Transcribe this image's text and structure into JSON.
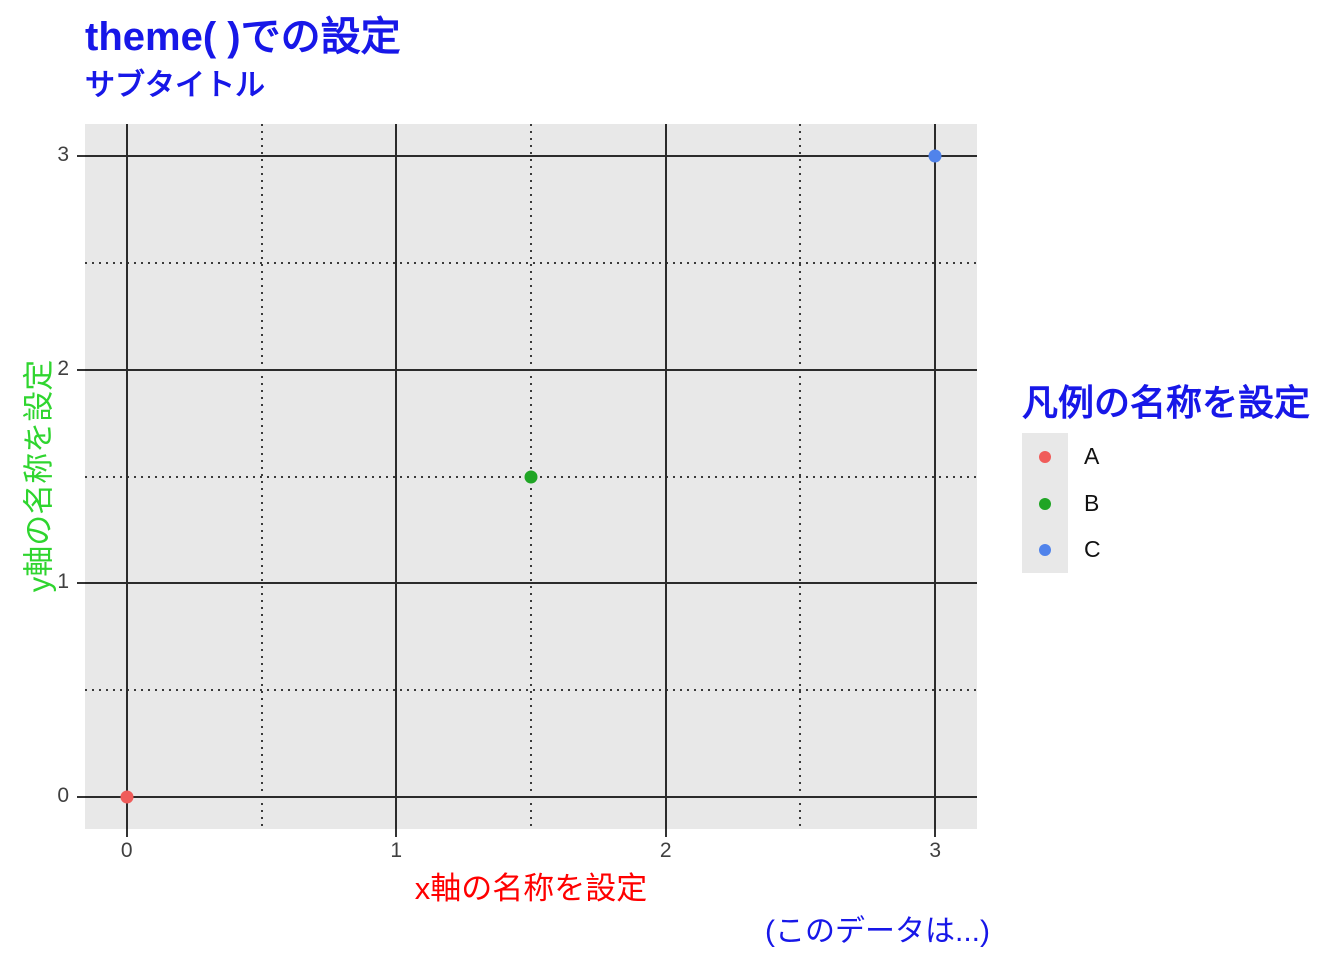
{
  "title": {
    "text": "theme( )での設定",
    "color": "#1717e8"
  },
  "subtitle": {
    "text": "サブタイトル",
    "color": "#1717e8"
  },
  "caption": {
    "text": "(このデータは...)",
    "color": "#1717e8"
  },
  "x_axis": {
    "label": "x軸の名称を設定",
    "label_color": "#ff0000",
    "tick_labels": [
      "0",
      "1",
      "2",
      "3"
    ]
  },
  "y_axis": {
    "label": "y軸の名称を設定",
    "label_color": "#2fd52f",
    "tick_labels": [
      "0",
      "1",
      "2",
      "3"
    ]
  },
  "legend": {
    "title": "凡例の名称を設定",
    "title_color": "#1717e8",
    "key_background": "#e8e8e8",
    "items": [
      {
        "label": "A",
        "color": "#f05c5a"
      },
      {
        "label": "B",
        "color": "#20a525"
      },
      {
        "label": "C",
        "color": "#5083eb"
      }
    ]
  },
  "panel": {
    "background": "#e8e8e8",
    "grid_major_color": "#2b2b2b",
    "grid_minor_color": "#3a3a3a",
    "tick_color": "#333333"
  },
  "chart_data": {
    "type": "scatter",
    "title": "theme( )での設定",
    "subtitle": "サブタイトル",
    "caption": "(このデータは...)",
    "xlabel": "x軸の名称を設定",
    "ylabel": "y軸の名称を設定",
    "legend_title": "凡例の名称を設定",
    "legend_position": "right",
    "xlim": [
      -0.155,
      3.155
    ],
    "ylim": [
      -0.15,
      3.15
    ],
    "x_major": [
      0,
      1,
      2,
      3
    ],
    "x_minor": [
      0.5,
      1.5,
      2.5
    ],
    "y_major": [
      0,
      1,
      2,
      3
    ],
    "y_minor": [
      0.5,
      1.5,
      2.5
    ],
    "grid": "major solid dark, minor dotted dark, on gray panel",
    "series": [
      {
        "name": "A",
        "color": "#f05c5a",
        "points": [
          [
            0,
            0
          ]
        ]
      },
      {
        "name": "B",
        "color": "#20a525",
        "points": [
          [
            1.5,
            1.5
          ]
        ]
      },
      {
        "name": "C",
        "color": "#5083eb",
        "points": [
          [
            3,
            3
          ]
        ]
      }
    ]
  }
}
